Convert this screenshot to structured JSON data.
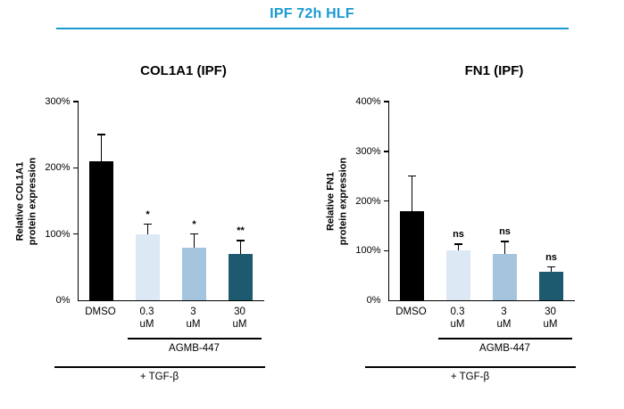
{
  "header": {
    "title": "IPF 72h HLF",
    "accent_color": "#1b9ad2"
  },
  "chart_data": [
    {
      "type": "bar",
      "title": "COL1A1 (IPF)",
      "ylabel": "Relative COL1A1\nprotein expression",
      "ylim": [
        0,
        300
      ],
      "yticks": [
        "0%",
        "100%",
        "200%",
        "300%"
      ],
      "categories": [
        "DMSO",
        "0.3\nuM",
        "3\nuM",
        "30\nuM"
      ],
      "values": [
        210,
        100,
        80,
        70
      ],
      "errors": [
        40,
        15,
        20,
        20
      ],
      "significance": [
        "",
        "*",
        "*",
        "**"
      ],
      "bar_colors": [
        "#000000",
        "#dce8f4",
        "#a5c4de",
        "#1d5a6f"
      ],
      "group_label": "AGMB-447",
      "treatment_label": "+ TGF-β",
      "grid": false,
      "legend": "none"
    },
    {
      "type": "bar",
      "title": "FN1 (IPF)",
      "ylabel": "Relative FN1\nprotein expression",
      "ylim": [
        0,
        400
      ],
      "yticks": [
        "0%",
        "100%",
        "200%",
        "300%",
        "400%"
      ],
      "categories": [
        "DMSO",
        "0.3\nuM",
        "3\nuM",
        "30\nuM"
      ],
      "values": [
        180,
        100,
        93,
        58
      ],
      "errors": [
        70,
        13,
        25,
        9
      ],
      "significance": [
        "",
        "ns",
        "ns",
        "ns"
      ],
      "bar_colors": [
        "#000000",
        "#dce8f4",
        "#a5c4de",
        "#1d5a6f"
      ],
      "group_label": "AGMB-447",
      "treatment_label": "+ TGF-β",
      "grid": false,
      "legend": "none"
    }
  ]
}
